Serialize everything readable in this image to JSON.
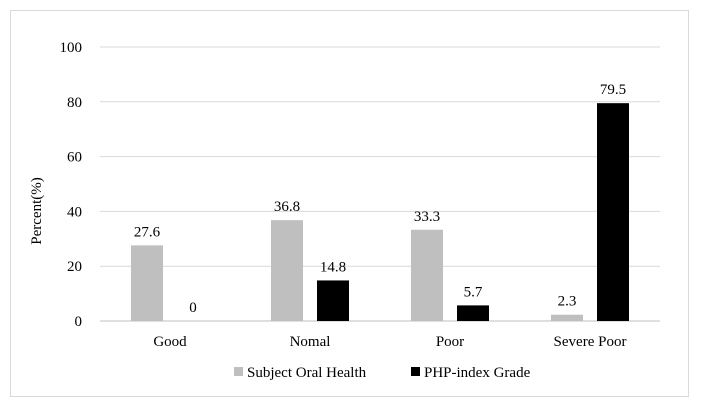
{
  "chart_data": {
    "type": "bar",
    "title": "",
    "xlabel": "",
    "ylabel": "Percent(%)",
    "ylim": [
      0,
      100
    ],
    "yticks": [
      0,
      20,
      40,
      60,
      80,
      100
    ],
    "grid": true,
    "legend_position": "bottom",
    "categories": [
      "Good",
      "Nomal",
      "Poor",
      "Severe Poor"
    ],
    "series": [
      {
        "name": "Subject Oral Health",
        "color": "#bfbfbf",
        "values": [
          27.6,
          36.8,
          33.3,
          2.3
        ],
        "labels": [
          "27.6",
          "36.8",
          "33.3",
          "2.3"
        ]
      },
      {
        "name": "PHP-index Grade",
        "color": "#000000",
        "values": [
          0,
          14.8,
          5.7,
          79.5
        ],
        "labels": [
          "0",
          "14.8",
          "5.7",
          "79.5"
        ]
      }
    ]
  }
}
